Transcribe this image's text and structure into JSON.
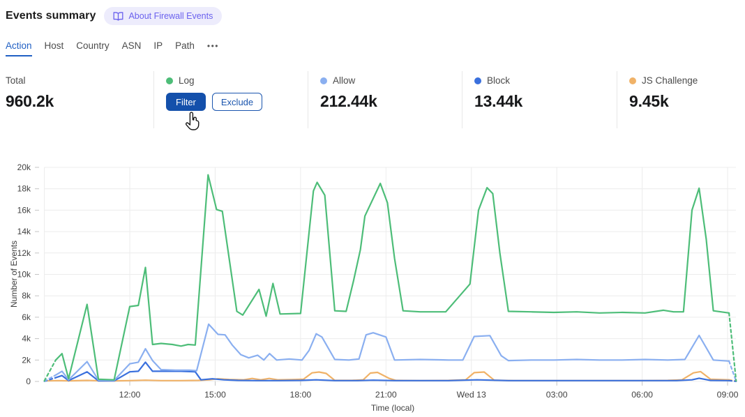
{
  "header": {
    "title": "Events summary",
    "about_button": "About Firewall Events"
  },
  "tabs": {
    "items": [
      {
        "label": "Action",
        "active": true
      },
      {
        "label": "Host",
        "active": false
      },
      {
        "label": "Country",
        "active": false
      },
      {
        "label": "ASN",
        "active": false
      },
      {
        "label": "IP",
        "active": false
      },
      {
        "label": "Path",
        "active": false
      }
    ],
    "more_label": "•••"
  },
  "stats": {
    "total": {
      "label": "Total",
      "value": "960.2k"
    },
    "log": {
      "label": "Log",
      "color": "#4dbd78",
      "filter_label": "Filter",
      "exclude_label": "Exclude"
    },
    "allow": {
      "label": "Allow",
      "value": "212.44k",
      "color": "#8aaff0"
    },
    "block": {
      "label": "Block",
      "value": "13.44k",
      "color": "#3a70dd"
    },
    "js_challenge": {
      "label": "JS Challenge",
      "value": "9.45k",
      "color": "#f0b268"
    }
  },
  "chart_data": {
    "type": "line",
    "title": "",
    "xlabel": "Time (local)",
    "ylabel": "Number of Events",
    "x_unit": "hours since 09:00 previous day (local time)",
    "y_unit": "thousands of events",
    "ylim": [
      0,
      20
    ],
    "x_range": [
      0,
      24.35
    ],
    "grid": true,
    "legend_position": "none (legend shown as stat cards above)",
    "y_ticks": [
      {
        "v": 0,
        "label": "0"
      },
      {
        "v": 2,
        "label": "2k"
      },
      {
        "v": 4,
        "label": "4k"
      },
      {
        "v": 6,
        "label": "6k"
      },
      {
        "v": 8,
        "label": "8k"
      },
      {
        "v": 10,
        "label": "10k"
      },
      {
        "v": 12,
        "label": "12k"
      },
      {
        "v": 14,
        "label": "14k"
      },
      {
        "v": 16,
        "label": "16k"
      },
      {
        "v": 18,
        "label": "18k"
      },
      {
        "v": 20,
        "label": "20k"
      }
    ],
    "x_ticks": [
      {
        "t": 3,
        "label": "12:00"
      },
      {
        "t": 6,
        "label": "15:00"
      },
      {
        "t": 9,
        "label": "18:00"
      },
      {
        "t": 12,
        "label": "21:00"
      },
      {
        "t": 15,
        "label": "Wed 13"
      },
      {
        "t": 18,
        "label": "03:00"
      },
      {
        "t": 21,
        "label": "06:00"
      },
      {
        "t": 24,
        "label": "09:00"
      }
    ],
    "series": [
      {
        "name": "JS Challenge",
        "color": "#f0b268",
        "width": 2.2,
        "dashed_head": 0,
        "dashed_tail": 1,
        "points": [
          [
            0,
            0.06
          ],
          [
            0.5,
            0.08
          ],
          [
            0.85,
            0.06
          ],
          [
            1.5,
            0.1
          ],
          [
            2,
            0.06
          ],
          [
            2.5,
            0.06
          ],
          [
            3,
            0.08
          ],
          [
            3.55,
            0.12
          ],
          [
            4.1,
            0.08
          ],
          [
            4.8,
            0.08
          ],
          [
            5.4,
            0.1
          ],
          [
            5.8,
            0.15
          ],
          [
            6.1,
            0.25
          ],
          [
            6.5,
            0.18
          ],
          [
            7,
            0.15
          ],
          [
            7.3,
            0.28
          ],
          [
            7.6,
            0.15
          ],
          [
            7.9,
            0.28
          ],
          [
            8.2,
            0.15
          ],
          [
            8.7,
            0.17
          ],
          [
            9.1,
            0.2
          ],
          [
            9.4,
            0.8
          ],
          [
            9.65,
            0.88
          ],
          [
            9.9,
            0.75
          ],
          [
            10.2,
            0.1
          ],
          [
            10.8,
            0.1
          ],
          [
            11.2,
            0.15
          ],
          [
            11.45,
            0.78
          ],
          [
            11.7,
            0.85
          ],
          [
            12.1,
            0.3
          ],
          [
            12.35,
            0.1
          ],
          [
            13.2,
            0.08
          ],
          [
            14.2,
            0.1
          ],
          [
            14.8,
            0.15
          ],
          [
            15.1,
            0.82
          ],
          [
            15.45,
            0.88
          ],
          [
            15.8,
            0.12
          ],
          [
            16.5,
            0.08
          ],
          [
            17.4,
            0.08
          ],
          [
            18.3,
            0.08
          ],
          [
            19.2,
            0.08
          ],
          [
            20.1,
            0.08
          ],
          [
            21,
            0.08
          ],
          [
            21.9,
            0.1
          ],
          [
            22.4,
            0.15
          ],
          [
            22.8,
            0.8
          ],
          [
            23.05,
            0.92
          ],
          [
            23.4,
            0.2
          ],
          [
            24.05,
            0.15
          ],
          [
            24.3,
            0.02
          ]
        ]
      },
      {
        "name": "Block",
        "color": "#3a70dd",
        "width": 2.2,
        "dashed_head": 1,
        "dashed_tail": 1,
        "points": [
          [
            0,
            0.01
          ],
          [
            0.4,
            0.35
          ],
          [
            0.62,
            0.55
          ],
          [
            0.85,
            0.08
          ],
          [
            1.5,
            0.9
          ],
          [
            1.9,
            0.05
          ],
          [
            2.45,
            0.05
          ],
          [
            3,
            0.9
          ],
          [
            3.3,
            0.95
          ],
          [
            3.55,
            1.8
          ],
          [
            3.8,
            0.95
          ],
          [
            4.3,
            0.95
          ],
          [
            4.8,
            0.95
          ],
          [
            5.3,
            0.9
          ],
          [
            5.5,
            0.15
          ],
          [
            5.9,
            0.25
          ],
          [
            6.3,
            0.15
          ],
          [
            6.8,
            0.1
          ],
          [
            7.5,
            0.08
          ],
          [
            8.2,
            0.08
          ],
          [
            9,
            0.1
          ],
          [
            9.55,
            0.15
          ],
          [
            10.2,
            0.08
          ],
          [
            11,
            0.08
          ],
          [
            11.55,
            0.12
          ],
          [
            12.3,
            0.08
          ],
          [
            13.2,
            0.08
          ],
          [
            14.2,
            0.08
          ],
          [
            15.2,
            0.15
          ],
          [
            15.7,
            0.12
          ],
          [
            16.3,
            0.08
          ],
          [
            17.2,
            0.08
          ],
          [
            18.2,
            0.08
          ],
          [
            19.2,
            0.08
          ],
          [
            20.2,
            0.08
          ],
          [
            21.2,
            0.08
          ],
          [
            22.2,
            0.08
          ],
          [
            22.75,
            0.15
          ],
          [
            23,
            0.3
          ],
          [
            23.4,
            0.1
          ],
          [
            24.05,
            0.08
          ],
          [
            24.3,
            0.01
          ]
        ]
      },
      {
        "name": "Allow",
        "color": "#8aaff0",
        "width": 2.2,
        "dashed_head": 1,
        "dashed_tail": 1,
        "points": [
          [
            0,
            0.02
          ],
          [
            0.4,
            0.6
          ],
          [
            0.62,
            0.95
          ],
          [
            0.85,
            0.15
          ],
          [
            1.5,
            1.85
          ],
          [
            1.9,
            0.12
          ],
          [
            2.45,
            0.1
          ],
          [
            3,
            1.65
          ],
          [
            3.3,
            1.8
          ],
          [
            3.55,
            3.05
          ],
          [
            3.8,
            1.95
          ],
          [
            4.1,
            1.1
          ],
          [
            4.6,
            1.05
          ],
          [
            5.1,
            1.05
          ],
          [
            5.35,
            1
          ],
          [
            5.77,
            5.35
          ],
          [
            6.1,
            4.4
          ],
          [
            6.35,
            4.35
          ],
          [
            6.6,
            3.4
          ],
          [
            6.9,
            2.5
          ],
          [
            7.18,
            2.2
          ],
          [
            7.49,
            2.45
          ],
          [
            7.71,
            2
          ],
          [
            7.91,
            2.6
          ],
          [
            8.16,
            2
          ],
          [
            8.6,
            2.1
          ],
          [
            9.05,
            2
          ],
          [
            9.3,
            2.9
          ],
          [
            9.55,
            4.45
          ],
          [
            9.75,
            4.15
          ],
          [
            10.2,
            2.05
          ],
          [
            10.7,
            2
          ],
          [
            11.05,
            2.1
          ],
          [
            11.3,
            4.35
          ],
          [
            11.55,
            4.55
          ],
          [
            12,
            4.15
          ],
          [
            12.3,
            2
          ],
          [
            13.2,
            2.05
          ],
          [
            14.2,
            2
          ],
          [
            14.7,
            2
          ],
          [
            15.1,
            4.2
          ],
          [
            15.65,
            4.28
          ],
          [
            16.05,
            2.4
          ],
          [
            16.3,
            1.95
          ],
          [
            17.1,
            2
          ],
          [
            17.9,
            2
          ],
          [
            18.7,
            2.05
          ],
          [
            19.5,
            2
          ],
          [
            20.3,
            2
          ],
          [
            21.1,
            2.05
          ],
          [
            21.9,
            2
          ],
          [
            22.5,
            2.05
          ],
          [
            23,
            4.3
          ],
          [
            23.5,
            2
          ],
          [
            24.05,
            1.9
          ],
          [
            24.3,
            0.02
          ]
        ]
      },
      {
        "name": "Log",
        "color": "#4dbd78",
        "width": 2.2,
        "dashed_head": 1,
        "dashed_tail": 1,
        "points": [
          [
            0,
            0.05
          ],
          [
            0.4,
            2
          ],
          [
            0.62,
            2.6
          ],
          [
            0.85,
            0.25
          ],
          [
            1.5,
            7.2
          ],
          [
            1.9,
            0.2
          ],
          [
            2.45,
            0.15
          ],
          [
            3,
            7
          ],
          [
            3.3,
            7.1
          ],
          [
            3.55,
            10.65
          ],
          [
            3.8,
            3.45
          ],
          [
            4.1,
            3.55
          ],
          [
            4.5,
            3.45
          ],
          [
            4.8,
            3.3
          ],
          [
            5.05,
            3.45
          ],
          [
            5.3,
            3.4
          ],
          [
            5.75,
            19.3
          ],
          [
            6.05,
            16.05
          ],
          [
            6.25,
            15.9
          ],
          [
            6.76,
            6.55
          ],
          [
            6.97,
            6.2
          ],
          [
            7.54,
            8.6
          ],
          [
            7.79,
            6.1
          ],
          [
            8.03,
            9.15
          ],
          [
            8.28,
            6.3
          ],
          [
            9,
            6.35
          ],
          [
            9.45,
            17.8
          ],
          [
            9.58,
            18.6
          ],
          [
            9.85,
            17.4
          ],
          [
            10.2,
            6.6
          ],
          [
            10.6,
            6.55
          ],
          [
            10.86,
            9.4
          ],
          [
            11.1,
            12.3
          ],
          [
            11.26,
            15.45
          ],
          [
            11.8,
            18.5
          ],
          [
            12.05,
            16.7
          ],
          [
            12.3,
            11.5
          ],
          [
            12.6,
            6.6
          ],
          [
            13.2,
            6.5
          ],
          [
            14.1,
            6.5
          ],
          [
            14.95,
            9.1
          ],
          [
            15.25,
            16
          ],
          [
            15.55,
            18.1
          ],
          [
            15.75,
            17.55
          ],
          [
            16,
            12
          ],
          [
            16.3,
            6.55
          ],
          [
            17.1,
            6.5
          ],
          [
            17.9,
            6.45
          ],
          [
            18.7,
            6.5
          ],
          [
            19.5,
            6.4
          ],
          [
            20.3,
            6.45
          ],
          [
            21.1,
            6.4
          ],
          [
            21.75,
            6.65
          ],
          [
            22.1,
            6.5
          ],
          [
            22.45,
            6.5
          ],
          [
            22.75,
            16
          ],
          [
            23,
            18.05
          ],
          [
            23.25,
            13.3
          ],
          [
            23.5,
            6.6
          ],
          [
            24.05,
            6.4
          ],
          [
            24.3,
            0.05
          ]
        ]
      }
    ]
  }
}
